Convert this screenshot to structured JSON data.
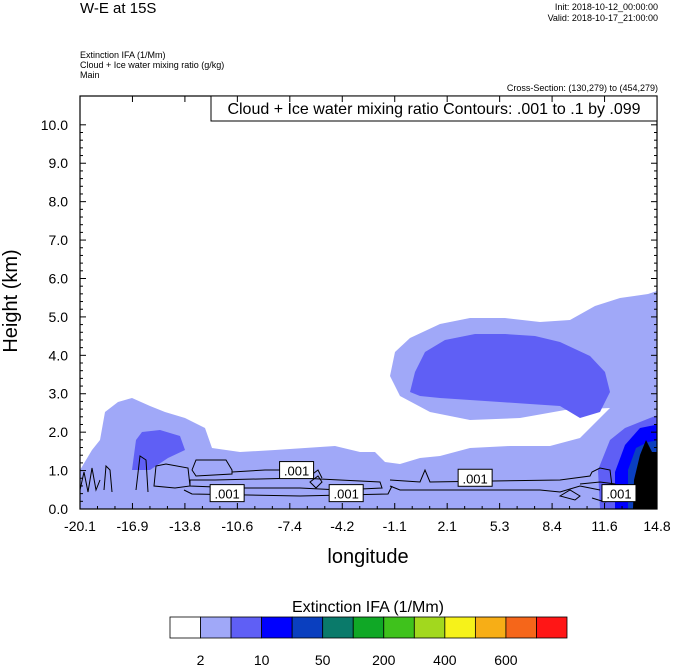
{
  "header": {
    "title": "W-E at 15S",
    "init": "Init: 2018-10-12_00:00:00",
    "valid": "Valid: 2018-10-17_21:00:00",
    "field_lines": [
      "Extinction IFA   (1/Mm)",
      "Cloud + Ice water mixing ratio   (g/kg)",
      "Main"
    ],
    "cross_section": "Cross-Section: (130,279) to (454,279)"
  },
  "chart_data": {
    "type": "heatmap",
    "title": "Cloud + Ice water mixing ratio Contours: .001 to .1 by .099",
    "xlabel": "longitude",
    "ylabel": "Height (km)",
    "x_ticks": [
      "-20.1",
      "-16.9",
      "-13.8",
      "-10.6",
      "-7.4",
      "-4.2",
      "-1.1",
      "2.1",
      "5.3",
      "8.4",
      "11.6",
      "14.8"
    ],
    "y_ticks": [
      "0.0",
      "1.0",
      "2.0",
      "3.0",
      "4.0",
      "5.0",
      "6.0",
      "7.0",
      "8.0",
      "9.0",
      "10.0"
    ],
    "xlim": [
      -20.1,
      14.8
    ],
    "ylim": [
      0,
      10.75
    ],
    "contour_labels": [
      {
        "text": ".001",
        "x": -7.0,
        "y": 1.0
      },
      {
        "text": ".001",
        "x": -11.2,
        "y": 0.4
      },
      {
        "text": ".001",
        "x": -4.0,
        "y": 0.4
      },
      {
        "text": ".001",
        "x": 3.8,
        "y": 0.8
      },
      {
        "text": ".001",
        "x": 12.5,
        "y": 0.4
      }
    ],
    "colorbar": {
      "title": "Extinction IFA  (1/Mm)",
      "colors": [
        "#ffffff",
        "#a0a8f8",
        "#5f5ff5",
        "#0000ff",
        "#0a3fbf",
        "#0a7a6a",
        "#10a826",
        "#3fc21c",
        "#a2d81e",
        "#f6f21a",
        "#f7ae16",
        "#f5661a",
        "#ff1616"
      ],
      "tick_labels": [
        "2",
        "10",
        "50",
        "200",
        "400",
        "600"
      ]
    }
  }
}
